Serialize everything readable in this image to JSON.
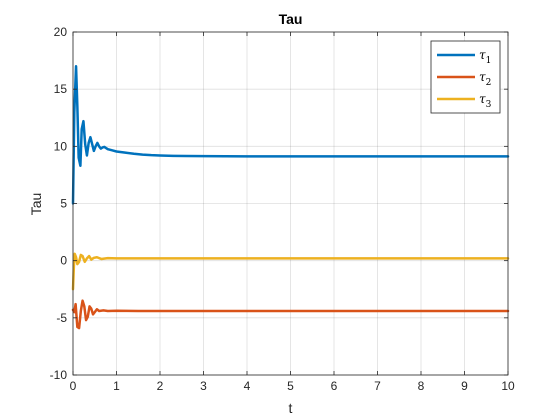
{
  "chart_data": {
    "type": "line",
    "title": "Tau",
    "xlabel": "t",
    "ylabel": "Tau",
    "xlim": [
      0,
      10
    ],
    "ylim": [
      -10,
      20
    ],
    "xticks": [
      "0",
      "1",
      "2",
      "3",
      "4",
      "5",
      "6",
      "7",
      "8",
      "9",
      "10"
    ],
    "yticks": [
      "-10",
      "-5",
      "0",
      "5",
      "10",
      "15",
      "20"
    ],
    "grid": true,
    "legend_position": "top-right",
    "series": [
      {
        "name": "τ1",
        "symbol": "τ",
        "subscript": "1",
        "color": "#0072BD",
        "x": [
          0,
          0.03,
          0.07,
          0.1,
          0.13,
          0.17,
          0.2,
          0.24,
          0.28,
          0.32,
          0.36,
          0.4,
          0.44,
          0.48,
          0.52,
          0.56,
          0.6,
          0.64,
          0.68,
          0.72,
          0.8,
          0.9,
          1.0,
          1.2,
          1.4,
          1.6,
          1.8,
          2.0,
          2.3,
          2.6,
          3.0,
          3.5,
          4,
          5,
          6,
          7,
          8,
          9,
          10
        ],
        "y": [
          5,
          13,
          17,
          13.5,
          9,
          8.3,
          11.5,
          12.2,
          10.2,
          9.2,
          10.3,
          10.8,
          10.2,
          9.6,
          10.0,
          10.3,
          10.0,
          9.8,
          9.9,
          9.95,
          9.75,
          9.65,
          9.55,
          9.45,
          9.35,
          9.28,
          9.23,
          9.2,
          9.17,
          9.15,
          9.14,
          9.13,
          9.12,
          9.12,
          9.12,
          9.12,
          9.12,
          9.12,
          9.12
        ]
      },
      {
        "name": "τ2",
        "symbol": "τ",
        "subscript": "2",
        "color": "#D95319",
        "x": [
          0,
          0.03,
          0.06,
          0.1,
          0.14,
          0.18,
          0.22,
          0.26,
          0.3,
          0.34,
          0.38,
          0.42,
          0.46,
          0.5,
          0.55,
          0.6,
          0.7,
          0.8,
          1.0,
          1.5,
          2,
          3,
          4,
          5,
          6,
          7,
          8,
          9,
          10
        ],
        "y": [
          -4.3,
          -4.5,
          -3.8,
          -5.8,
          -5.9,
          -4.4,
          -3.5,
          -4.0,
          -5.2,
          -4.9,
          -4.0,
          -4.2,
          -4.7,
          -4.5,
          -4.25,
          -4.4,
          -4.35,
          -4.4,
          -4.38,
          -4.4,
          -4.4,
          -4.4,
          -4.4,
          -4.4,
          -4.4,
          -4.4,
          -4.4,
          -4.4,
          -4.4
        ]
      },
      {
        "name": "τ3",
        "symbol": "τ",
        "subscript": "3",
        "color": "#EDB120",
        "x": [
          0,
          0.02,
          0.04,
          0.07,
          0.1,
          0.14,
          0.18,
          0.22,
          0.27,
          0.32,
          0.37,
          0.42,
          0.48,
          0.55,
          0.65,
          0.8,
          1.0,
          1.5,
          2,
          3,
          4,
          5,
          6,
          7,
          8,
          9,
          10
        ],
        "y": [
          -2.5,
          -0.5,
          0.6,
          0.3,
          -0.3,
          -0.1,
          0.5,
          0.4,
          -0.1,
          0.2,
          0.4,
          0.1,
          0.25,
          0.3,
          0.15,
          0.22,
          0.2,
          0.2,
          0.2,
          0.2,
          0.2,
          0.2,
          0.2,
          0.2,
          0.2,
          0.2,
          0.2
        ]
      }
    ]
  }
}
